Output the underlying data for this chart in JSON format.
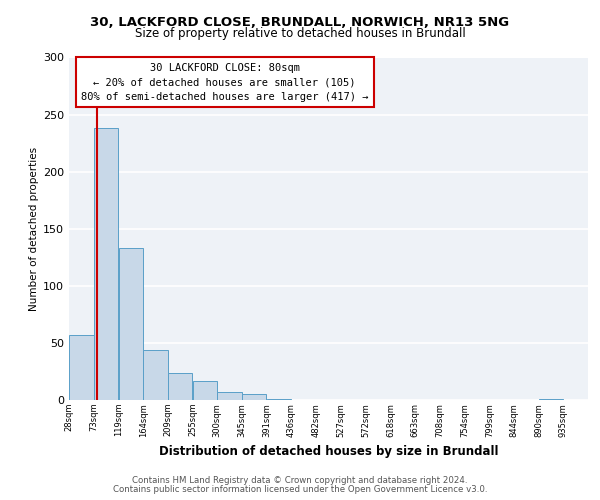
{
  "title_line1": "30, LACKFORD CLOSE, BRUNDALL, NORWICH, NR13 5NG",
  "title_line2": "Size of property relative to detached houses in Brundall",
  "xlabel": "Distribution of detached houses by size in Brundall",
  "ylabel": "Number of detached properties",
  "bin_labels": [
    "28sqm",
    "73sqm",
    "119sqm",
    "164sqm",
    "209sqm",
    "255sqm",
    "300sqm",
    "345sqm",
    "391sqm",
    "436sqm",
    "482sqm",
    "527sqm",
    "572sqm",
    "618sqm",
    "663sqm",
    "708sqm",
    "754sqm",
    "799sqm",
    "844sqm",
    "890sqm",
    "935sqm"
  ],
  "bin_edges": [
    28,
    73,
    119,
    164,
    209,
    255,
    300,
    345,
    391,
    436,
    482,
    527,
    572,
    618,
    663,
    708,
    754,
    799,
    844,
    890,
    935
  ],
  "bar_heights": [
    57,
    238,
    133,
    44,
    24,
    17,
    7,
    5,
    1,
    0,
    0,
    0,
    0,
    0,
    0,
    0,
    0,
    0,
    0,
    1,
    0
  ],
  "bar_color": "#c8d8e8",
  "bar_edge_color": "#5a9fc8",
  "vline_x": 80,
  "vline_color": "#cc0000",
  "annotation_text_line1": "30 LACKFORD CLOSE: 80sqm",
  "annotation_text_line2": "← 20% of detached houses are smaller (105)",
  "annotation_text_line3": "80% of semi-detached houses are larger (417) →",
  "annotation_box_color": "#cc0000",
  "ylim": [
    0,
    300
  ],
  "yticks": [
    0,
    50,
    100,
    150,
    200,
    250,
    300
  ],
  "footer_line1": "Contains HM Land Registry data © Crown copyright and database right 2024.",
  "footer_line2": "Contains public sector information licensed under the Open Government Licence v3.0.",
  "background_color": "#eef2f7",
  "grid_color": "#ffffff"
}
